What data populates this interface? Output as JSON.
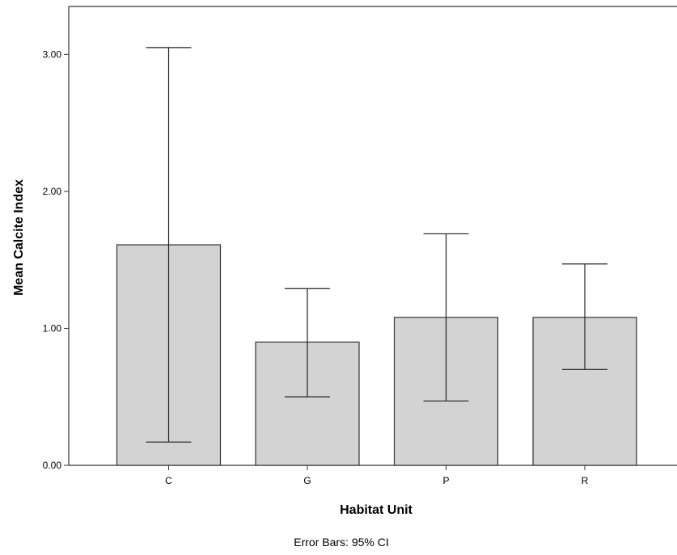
{
  "chart_data": {
    "type": "bar",
    "xlabel": "Habitat Unit",
    "ylabel": "Mean Calcite Index",
    "footnote": "Error Bars: 95% CI",
    "categories": [
      "C",
      "G",
      "P",
      "R"
    ],
    "values": [
      1.61,
      0.9,
      1.08,
      1.08
    ],
    "ci_low": [
      0.17,
      0.5,
      0.47,
      0.7
    ],
    "ci_high": [
      3.05,
      1.29,
      1.69,
      1.47
    ],
    "ylim": [
      0,
      3.35
    ],
    "yticks": [
      0,
      1,
      2,
      3
    ],
    "ytick_labels": [
      "0.00",
      "1.00",
      "2.00",
      "3.00"
    ],
    "grid": false,
    "colors": {
      "bar_fill": "#d3d3d3",
      "bar_stroke": "#333333",
      "axis": "#333333"
    }
  }
}
